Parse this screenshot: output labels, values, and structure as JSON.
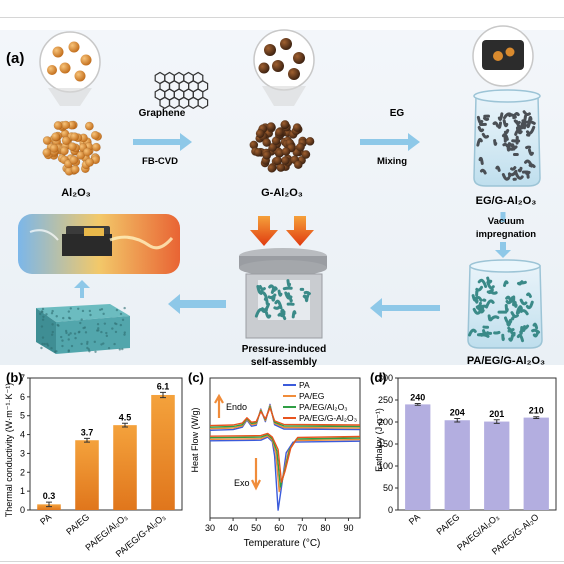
{
  "figure": {
    "panel_labels": {
      "a": "(a)",
      "b": "(b)",
      "c": "(c)",
      "d": "(d)"
    },
    "panel_a": {
      "steps": {
        "al2o3": "Al₂O₃",
        "graphene": "Graphene",
        "fbcvd": "FB-CVD",
        "g_al2o3": "G-Al₂O₃",
        "eg": "EG",
        "mixing": "Mixing",
        "eg_g_al2o3": "EG/G-Al₂O₃",
        "vacuum_1": "Vacuum",
        "vacuum_2": "impregnation",
        "pa_eg_g_al2o3": "PA/EG/G-Al₂O₃",
        "pressure_1": "Pressure-induced",
        "pressure_2": "self-assembly"
      },
      "colors": {
        "particle": "#d98a2e",
        "coated": "#5a3520",
        "eg": "#4a4f55",
        "pa_eg": "#3a8a88",
        "arrow": "#8ec8e8",
        "press": "#e8541e"
      }
    }
  },
  "chart_data": [
    {
      "panel": "b",
      "type": "bar",
      "categories": [
        "PA",
        "PA/EG",
        "PA/EG/Al₂O₃",
        "PA/EG/G-Al₂O₃"
      ],
      "values": [
        0.3,
        3.7,
        4.5,
        6.1
      ],
      "errors": [
        0.12,
        0.1,
        0.1,
        0.14
      ],
      "data_labels": [
        "0.3",
        "3.7",
        "4.5",
        "6.1"
      ],
      "ylabel": "Thermal conductivity (W·m⁻¹·K⁻¹)",
      "ylim": [
        0,
        7
      ],
      "yticks": [
        "0",
        "1",
        "2",
        "3",
        "4",
        "5",
        "6",
        "7"
      ],
      "color": "#e88a2a"
    },
    {
      "panel": "c",
      "type": "line",
      "xlabel": "Temperature (°C)",
      "ylabel": "Heat Flow (W/g)",
      "xlim": [
        30,
        95
      ],
      "xticks": [
        "30",
        "40",
        "50",
        "60",
        "70",
        "80",
        "90"
      ],
      "annotations": {
        "endo": "Endo",
        "exo": "Exo"
      },
      "legend_position": "top-right",
      "series": [
        {
          "name": "PA",
          "color": "#3b5bdb",
          "heating": [
            [
              30,
              0.62
            ],
            [
              40,
              0.64
            ],
            [
              44,
              0.72
            ],
            [
              46,
              0.95
            ],
            [
              48,
              0.75
            ],
            [
              50,
              0.78
            ],
            [
              52,
              1.3
            ],
            [
              54,
              0.9
            ],
            [
              56,
              1.45
            ],
            [
              58,
              0.8
            ],
            [
              62,
              0.66
            ],
            [
              95,
              0.64
            ]
          ],
          "cooling": [
            [
              30,
              0.28
            ],
            [
              52,
              0.3
            ],
            [
              55,
              0.4
            ],
            [
              57,
              0.26
            ],
            [
              58,
              -0.2
            ],
            [
              59.5,
              -1.95
            ],
            [
              61,
              -1.2
            ],
            [
              63,
              -0.1
            ],
            [
              66,
              0.24
            ],
            [
              95,
              0.27
            ]
          ]
        },
        {
          "name": "PA/EG",
          "color": "#f08c3a",
          "heating": [
            [
              30,
              0.67
            ],
            [
              40,
              0.69
            ],
            [
              44,
              0.76
            ],
            [
              46,
              0.98
            ],
            [
              48,
              0.8
            ],
            [
              50,
              0.82
            ],
            [
              52,
              1.28
            ],
            [
              54,
              0.93
            ],
            [
              56,
              1.42
            ],
            [
              58,
              0.84
            ],
            [
              62,
              0.71
            ],
            [
              95,
              0.69
            ]
          ],
          "cooling": [
            [
              30,
              0.33
            ],
            [
              52,
              0.35
            ],
            [
              55,
              0.44
            ],
            [
              57,
              0.3
            ],
            [
              58.5,
              -0.1
            ],
            [
              60,
              -1.35
            ],
            [
              61.5,
              -0.9
            ],
            [
              64,
              -0.05
            ],
            [
              67,
              0.29
            ],
            [
              95,
              0.32
            ]
          ]
        },
        {
          "name": "PA/EG/Al₂O₃",
          "color": "#2f9e44",
          "heating": [
            [
              30,
              0.72
            ],
            [
              40,
              0.74
            ],
            [
              44,
              0.8
            ],
            [
              46,
              1.0
            ],
            [
              48,
              0.84
            ],
            [
              50,
              0.86
            ],
            [
              52,
              1.25
            ],
            [
              54,
              0.96
            ],
            [
              56,
              1.38
            ],
            [
              58,
              0.88
            ],
            [
              62,
              0.76
            ],
            [
              95,
              0.74
            ]
          ],
          "cooling": [
            [
              30,
              0.38
            ],
            [
              52,
              0.4
            ],
            [
              55,
              0.48
            ],
            [
              57,
              0.35
            ],
            [
              59,
              -0.05
            ],
            [
              60.5,
              -1.2
            ],
            [
              62,
              -0.8
            ],
            [
              64.5,
              0.0
            ],
            [
              67.5,
              0.34
            ],
            [
              95,
              0.37
            ]
          ]
        },
        {
          "name": "PA/EG/G-Al₂O₃",
          "color": "#e8541e",
          "heating": [
            [
              30,
              0.77
            ],
            [
              40,
              0.79
            ],
            [
              44,
              0.85
            ],
            [
              46,
              1.02
            ],
            [
              48,
              0.88
            ],
            [
              50,
              0.9
            ],
            [
              52,
              1.22
            ],
            [
              54,
              0.99
            ],
            [
              56,
              1.34
            ],
            [
              58,
              0.92
            ],
            [
              62,
              0.81
            ],
            [
              95,
              0.79
            ]
          ],
          "cooling": [
            [
              30,
              0.43
            ],
            [
              52,
              0.45
            ],
            [
              55,
              0.52
            ],
            [
              57,
              0.4
            ],
            [
              59.5,
              0.0
            ],
            [
              61,
              -1.05
            ],
            [
              62.5,
              -0.7
            ],
            [
              65,
              0.05
            ],
            [
              68,
              0.39
            ],
            [
              95,
              0.42
            ]
          ]
        }
      ],
      "ylim": [
        -2.2,
        2.3
      ]
    },
    {
      "panel": "d",
      "type": "bar",
      "categories": [
        "PA",
        "PA/EG",
        "PA/EG/Al₂O₃",
        "PA/EG/G-Al₂O"
      ],
      "values": [
        240,
        204,
        201,
        210
      ],
      "errors": [
        2,
        4,
        4,
        2
      ],
      "data_labels": [
        "240",
        "204",
        "201",
        "210"
      ],
      "ylabel": "Enthalpy (J·g⁻¹)",
      "ylim": [
        0,
        300
      ],
      "yticks": [
        "0",
        "50",
        "100",
        "150",
        "200",
        "250",
        "300"
      ],
      "color": "#b3aee0"
    }
  ]
}
